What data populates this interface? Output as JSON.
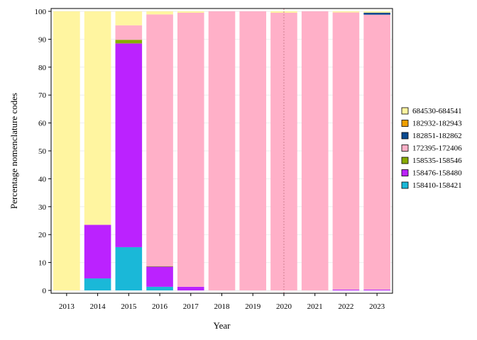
{
  "chart_data": {
    "type": "bar",
    "stacked": true,
    "xlabel": "Year",
    "ylabel": "Percentage nomenclature codes",
    "ylim": [
      0,
      100
    ],
    "yticks": [
      0,
      10,
      20,
      30,
      40,
      50,
      60,
      70,
      80,
      90,
      100
    ],
    "categories": [
      "2013",
      "2014",
      "2015",
      "2016",
      "2017",
      "2018",
      "2019",
      "2020",
      "2021",
      "2022",
      "2023"
    ],
    "reference_line_x": "2020",
    "legend_position": "right",
    "series": [
      {
        "name": "158410-158421",
        "color": "#1ab8d8",
        "values": [
          0,
          4.3,
          15.5,
          1.3,
          0,
          0,
          0,
          0,
          0,
          0,
          0
        ]
      },
      {
        "name": "158476-158480",
        "color": "#bb22ff",
        "values": [
          0,
          19.2,
          73.0,
          7.2,
          1.3,
          0,
          0,
          0,
          0,
          0.3,
          0.3
        ]
      },
      {
        "name": "158535-158546",
        "color": "#88aa00",
        "values": [
          0,
          0,
          1.3,
          0.2,
          0,
          0,
          0,
          0,
          0,
          0,
          0
        ]
      },
      {
        "name": "172395-172406",
        "color": "#ffb0c8",
        "values": [
          0,
          0,
          5.2,
          90.2,
          98.2,
          100,
          100,
          99.5,
          100,
          99.3,
          98.5
        ]
      },
      {
        "name": "182851-182862",
        "color": "#0a4a90",
        "values": [
          0,
          0,
          0,
          0,
          0,
          0,
          0,
          0,
          0,
          0,
          0.7
        ]
      },
      {
        "name": "182932-182943",
        "color": "#f0a000",
        "values": [
          0,
          0,
          0,
          0,
          0,
          0,
          0,
          0,
          0,
          0,
          0
        ]
      },
      {
        "name": "684530-684541",
        "color": "#fff5a0",
        "values": [
          100,
          76.5,
          5.0,
          1.1,
          0.5,
          0,
          0,
          0.5,
          0,
          0.4,
          0.5
        ]
      }
    ]
  }
}
